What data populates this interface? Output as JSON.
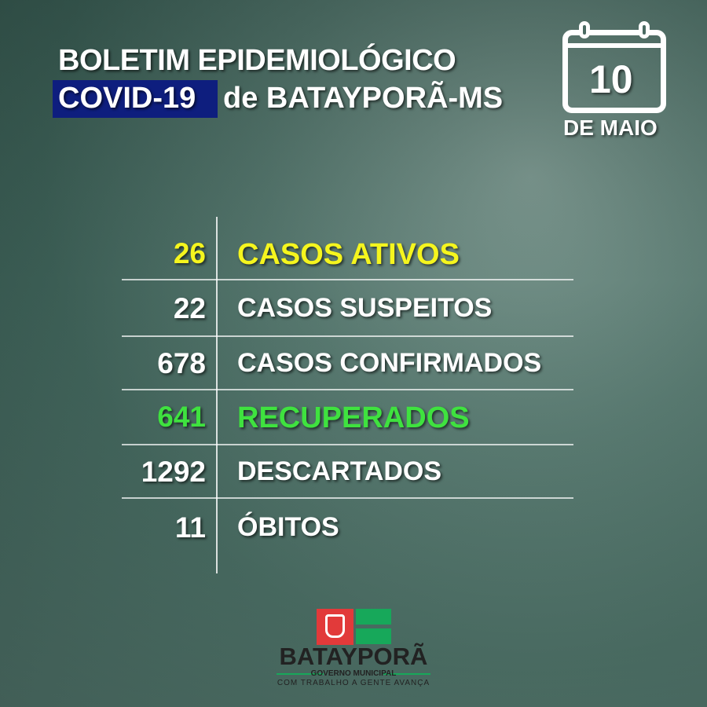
{
  "header": {
    "title_line1": "BOLETIM EPIDEMIOLÓGICO",
    "title_highlight": "COVID-19",
    "title_line2_rest": "de BATAYPORÃ-MS"
  },
  "date": {
    "day": "10",
    "month": "DE MAIO",
    "icon": "calendar-icon"
  },
  "colors": {
    "highlight_bg": "#0e1e7e",
    "active": "#f5f51e",
    "recovered": "#3fe23f",
    "logo_red": "#e23a3a",
    "logo_green": "#17a85a"
  },
  "stats": [
    {
      "value": "26",
      "label": "CASOS ATIVOS",
      "color": "#f5f51e"
    },
    {
      "value": "22",
      "label": "CASOS SUSPEITOS",
      "color": "#ffffff"
    },
    {
      "value": "678",
      "label": "CASOS CONFIRMADOS",
      "color": "#ffffff"
    },
    {
      "value": "641",
      "label": "RECUPERADOS",
      "color": "#3fe23f"
    },
    {
      "value": "1292",
      "label": "DESCARTADOS",
      "color": "#ffffff"
    },
    {
      "value": "11",
      "label": "ÓBITOS",
      "color": "#ffffff"
    }
  ],
  "footer": {
    "brand": "BATAYPORÃ",
    "subtitle": "GOVERNO MUNICIPAL",
    "slogan": "COM TRABALHO A GENTE AVANÇA"
  }
}
